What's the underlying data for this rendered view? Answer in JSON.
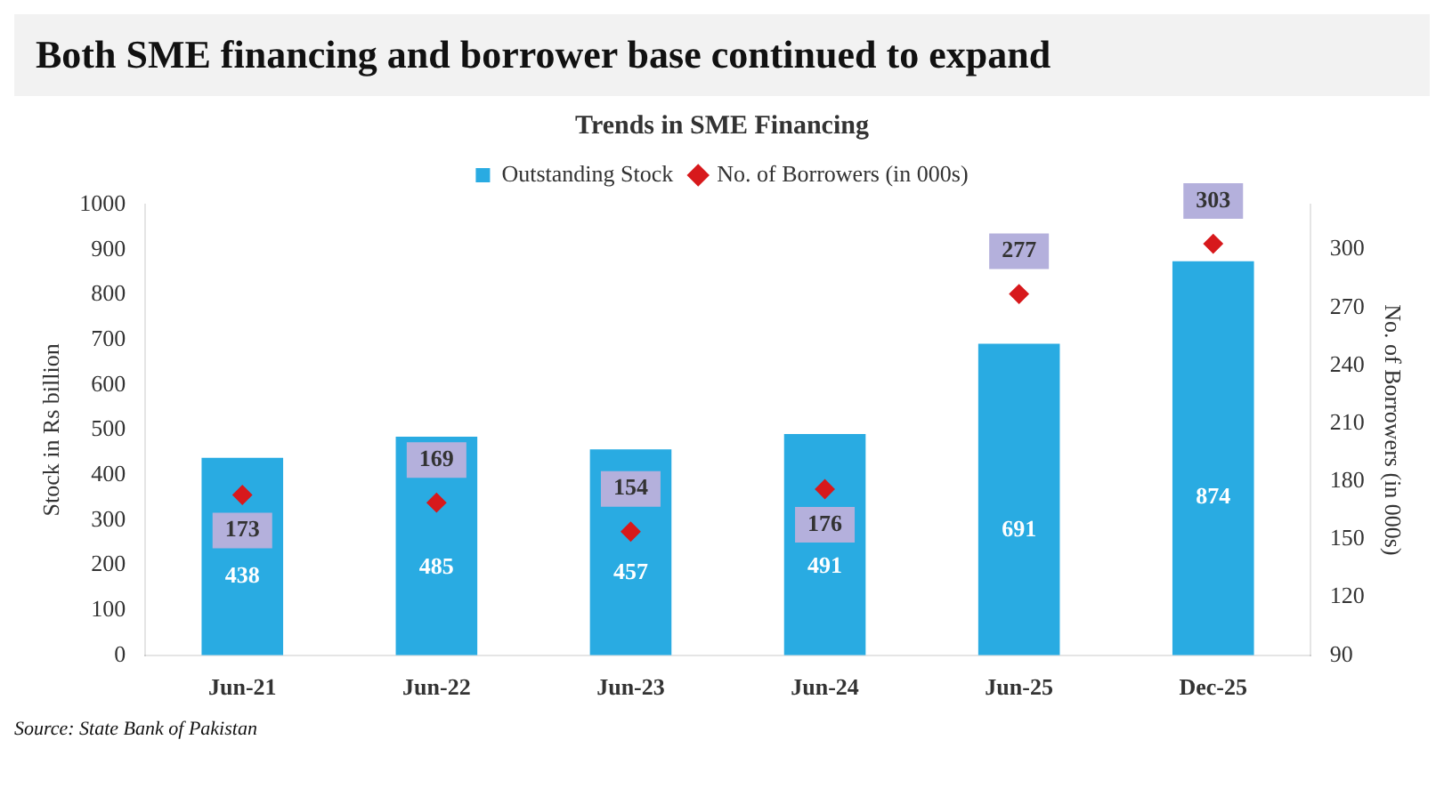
{
  "chart_data": {
    "type": "bar",
    "title": "Both SME financing and borrower base continued to expand",
    "subtitle": "Trends in SME Financing",
    "ylabel": "Stock in Rs billion",
    "y2label": "No. of Borrowers (in 000s)",
    "categories": [
      "Jun-21",
      "Jun-22",
      "Jun-23",
      "Jun-24",
      "Jun-25",
      "Dec-25"
    ],
    "series": [
      {
        "name": "Outstanding Stock",
        "color": "#29abe2",
        "values": [
          438,
          485,
          457,
          491,
          691,
          874
        ]
      },
      {
        "name": "No. of Borrowers (in 000s)",
        "type": "scatter",
        "axis": "y2",
        "color": "#d7191c",
        "values": [
          173,
          169,
          154,
          176,
          277,
          303
        ]
      }
    ],
    "ylim": [
      0,
      1000
    ],
    "yticks": [
      0,
      100,
      200,
      300,
      400,
      500,
      600,
      700,
      800,
      900,
      1000
    ],
    "y2lim": [
      90,
      323.3
    ],
    "y2ticks": [
      90,
      120,
      150,
      180,
      210,
      240,
      270,
      300
    ],
    "marker": "diamond",
    "data_labels": true,
    "legend": "top",
    "grid": false,
    "annotations": [
      "Source: State Bank of Pakistan"
    ]
  }
}
